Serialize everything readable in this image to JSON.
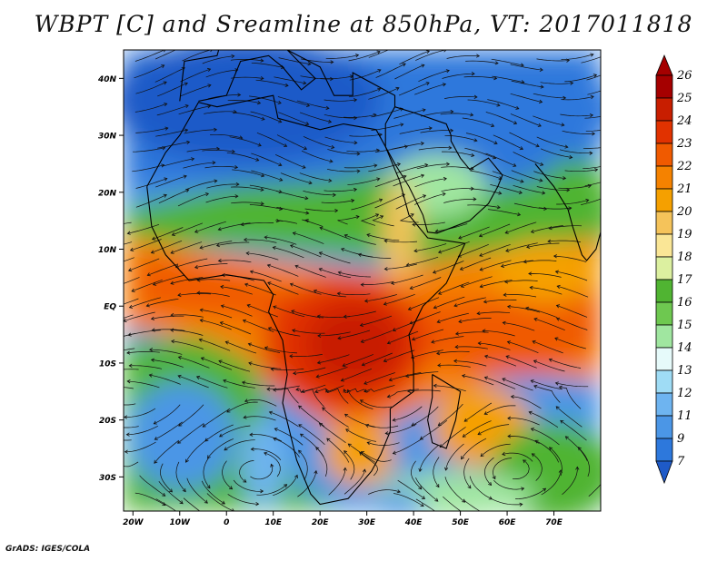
{
  "title": "WBPT [C] and Sreamline at 850hPa, VT: 2017011818",
  "credit": "GrADS: IGES/COLA",
  "map": {
    "lon_range": [
      -22,
      80
    ],
    "lat_range": [
      -36,
      45
    ],
    "lat_ticks": [
      "40N",
      "30N",
      "20N",
      "10N",
      "EQ",
      "10S",
      "20S",
      "30S"
    ],
    "lon_ticks": [
      "20W",
      "10W",
      "0",
      "10E",
      "20E",
      "30E",
      "40E",
      "50E",
      "60E",
      "70E"
    ]
  },
  "colorbar": {
    "levels": [
      "26",
      "25",
      "24",
      "23",
      "22",
      "21",
      "20",
      "19",
      "18",
      "17",
      "16",
      "15",
      "14",
      "13",
      "12",
      "11",
      "9",
      "7"
    ],
    "colors": [
      "#a50000",
      "#c81e00",
      "#e13200",
      "#f05a00",
      "#f58200",
      "#f5a000",
      "#f5c35a",
      "#fae696",
      "#dcf0a0",
      "#50b432",
      "#6ec850",
      "#a0e6a0",
      "#e6fafa",
      "#9fdcf5",
      "#6eb4f0",
      "#4b96e6",
      "#2d78dc",
      "#1e5ac8"
    ]
  }
}
